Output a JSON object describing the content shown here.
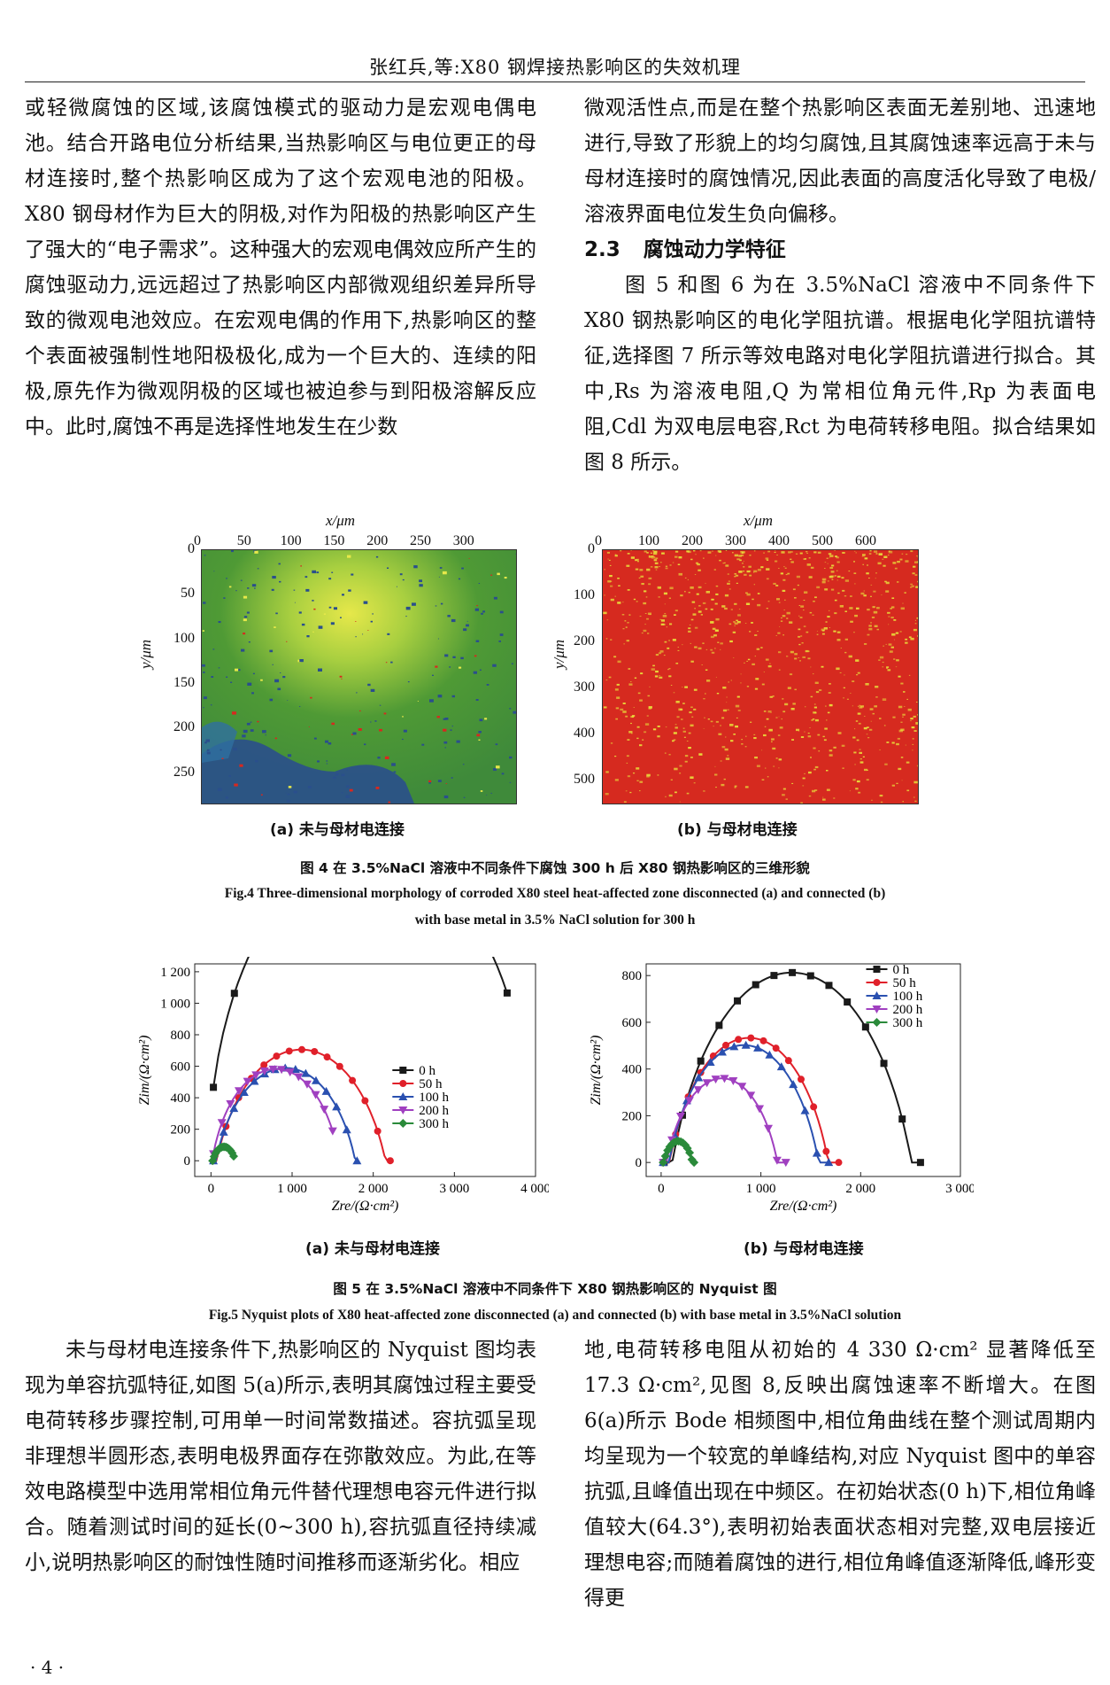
{
  "running_head": "张红兵,等:X80 钢焊接热影响区的失效机理",
  "left_column_top": [
    "或轻微腐蚀的区域,该腐蚀模式的驱动力是宏观电偶电池。结合开路电位分析结果,当热影响区与电位更正的母材连接时,整个热影响区成为了这个宏观电池的阳极。X80 钢母材作为巨大的阴极,对作为阳极的热影响区产生了强大的“电子需求”。这种强大的宏观电偶效应所产生的腐蚀驱动力,远远超过了热影响区内部微观组织差异所导致的微观电池效应。在宏观电偶的作用下,热影响区的整个表面被强制性地阳极极化,成为一个巨大的、连续的阳极,原先作为微观阴极的区域也被迫参与到阳极溶解反应中。此时,腐蚀不再是选择性地发生在少数"
  ],
  "right_column_top": {
    "para1": "微观活性点,而是在整个热影响区表面无差别地、迅速地进行,导致了形貌上的均匀腐蚀,且其腐蚀速率远高于未与母材连接时的腐蚀情况,因此表面的高度活化导致了电极/溶液界面电位发生负向偏移。",
    "section_number": "2.3",
    "section_title": "腐蚀动力学特征",
    "para2": "图 5 和图 6 为在 3.5%NaCl 溶液中不同条件下 X80 钢热影响区的电化学阻抗谱。根据电化学阻抗谱特征,选择图 7 所示等效电路对电化学阻抗谱进行拟合。其中,Rs 为溶液电阻,Q 为常相位角元件,Rp 为表面电阻,Cdl 为双电层电容,Rct 为电荷转移电阻。拟合结果如图 8 所示。"
  },
  "fig4": {
    "panel_a": {
      "x_label": "x/μm",
      "y_label": "y/μm",
      "x_ticks": [
        "0",
        "50",
        "100",
        "150",
        "200",
        "250",
        "300"
      ],
      "y_ticks": [
        "0",
        "50",
        "100",
        "150",
        "200",
        "250"
      ],
      "caption": "(a) 未与母材电连接",
      "colors": {
        "green": "#4f9a35",
        "yellow": "#e6e84a",
        "blue": "#2a4f8c",
        "red": "#d8281e"
      }
    },
    "panel_b": {
      "x_label": "x/μm",
      "y_label": "y/μm",
      "x_ticks": [
        "0",
        "100",
        "200",
        "300",
        "400",
        "500",
        "600"
      ],
      "y_ticks": [
        "0",
        "100",
        "200",
        "300",
        "400",
        "500"
      ],
      "caption": "(b) 与母材电连接",
      "colors": {
        "red": "#d62a1f",
        "yellow": "#e8d83a"
      }
    },
    "caption_cn": "图 4  在 3.5%NaCl 溶液中不同条件下腐蚀 300 h 后 X80 钢热影响区的三维形貌",
    "caption_en_1": "Fig.4  Three-dimensional morphology of corroded X80 steel heat-affected zone disconnected (a) and connected (b)",
    "caption_en_2": "with base metal in 3.5% NaCl solution for 300 h"
  },
  "fig5": {
    "caption_cn": "图 5  在 3.5%NaCl 溶液中不同条件下 X80 钢热影响区的 Nyquist 图",
    "caption_en": "Fig.5  Nyquist plots of X80 heat-affected zone disconnected (a) and connected (b) with base metal in 3.5%NaCl solution",
    "caption_a": "(a) 未与母材电连接",
    "caption_b": "(b) 与母材电连接"
  },
  "chart_data": [
    {
      "type": "scatter",
      "xlabel": "Zre/(Ω·cm²)",
      "ylabel": "Zim/(Ω·cm²)",
      "xlim": [
        -200,
        4000
      ],
      "ylim": [
        -100,
        1250
      ],
      "x_ticks": [
        0,
        1000,
        2000,
        3000,
        4000
      ],
      "x_tick_labels": [
        "0",
        "1 000",
        "2 000",
        "3 000",
        "4 000"
      ],
      "y_ticks": [
        0,
        200,
        400,
        600,
        800,
        1000,
        1200
      ],
      "y_tick_labels": [
        "0",
        "200",
        "400",
        "600",
        "800",
        "1 000",
        "1 200"
      ],
      "legend_position": "right",
      "series": [
        {
          "name": "0 h",
          "marker": "square",
          "color": "#1a1a1a",
          "center": 1970,
          "radius": 2000,
          "depression": -0.01,
          "x_start": 30,
          "x_end": 3650
        },
        {
          "name": "50 h",
          "marker": "circle",
          "color": "#e0202a",
          "center": 1110,
          "radius": 1120,
          "depression": -0.37,
          "x_start": 30,
          "x_end": 2210
        },
        {
          "name": "100 h",
          "marker": "triangle-up",
          "color": "#2a50b0",
          "center": 920,
          "radius": 920,
          "depression": -0.36,
          "x_start": 30,
          "x_end": 1800
        },
        {
          "name": "200 h",
          "marker": "triangle-down",
          "color": "#a040c0",
          "center": 800,
          "radius": 820,
          "depression": -0.29,
          "x_start": 30,
          "x_end": 1500
        },
        {
          "name": "300 h",
          "marker": "diamond",
          "color": "#2a8a3a",
          "center": 160,
          "radius": 150,
          "depression": -0.41,
          "x_start": 20,
          "x_end": 280
        }
      ]
    },
    {
      "type": "scatter",
      "xlabel": "Zre/(Ω·cm²)",
      "ylabel": "Zim/(Ω·cm²)",
      "xlim": [
        -150,
        3000
      ],
      "ylim": [
        -60,
        850
      ],
      "x_ticks": [
        0,
        1000,
        2000,
        3000
      ],
      "x_tick_labels": [
        "0",
        "1 000",
        "2 000",
        "3 000"
      ],
      "y_ticks": [
        0,
        200,
        400,
        600,
        800
      ],
      "y_tick_labels": [
        "0",
        "200",
        "400",
        "600",
        "800"
      ],
      "legend_position": "top-right",
      "series": [
        {
          "name": "0 h",
          "marker": "square",
          "color": "#1a1a1a",
          "center": 1310,
          "radius": 1290,
          "depression": -0.37,
          "x_start": 30,
          "x_end": 2600
        },
        {
          "name": "50 h",
          "marker": "circle",
          "color": "#e0202a",
          "center": 880,
          "radius": 860,
          "depression": -0.38,
          "x_start": 20,
          "x_end": 1780
        },
        {
          "name": "100 h",
          "marker": "triangle-up",
          "color": "#2a50b0",
          "center": 830,
          "radius": 810,
          "depression": -0.38,
          "x_start": 20,
          "x_end": 1680
        },
        {
          "name": "200 h",
          "marker": "triangle-down",
          "color": "#a040c0",
          "center": 610,
          "radius": 610,
          "depression": -0.41,
          "x_start": 20,
          "x_end": 1250
        },
        {
          "name": "300 h",
          "marker": "diamond",
          "color": "#2a8a3a",
          "center": 170,
          "radius": 160,
          "depression": -0.43,
          "x_start": 20,
          "x_end": 330
        }
      ]
    }
  ],
  "left_column_bottom": "未与母材电连接条件下,热影响区的 Nyquist 图均表现为单容抗弧特征,如图 5(a)所示,表明其腐蚀过程主要受电荷转移步骤控制,可用单一时间常数描述。容抗弧呈现非理想半圆形态,表明电极界面存在弥散效应。为此,在等效电路模型中选用常相位角元件替代理想电容元件进行拟合。随着测试时间的延长(0~300 h),容抗弧直径持续减小,说明热影响区的耐蚀性随时间推移而逐渐劣化。相应",
  "right_column_bottom": "地,电荷转移电阻从初始的 4 330 Ω·cm² 显著降低至 17.3 Ω·cm²,见图 8,反映出腐蚀速率不断增大。在图 6(a)所示 Bode 相频图中,相位角曲线在整个测试周期内均呈现为一个较宽的单峰结构,对应 Nyquist 图中的单容抗弧,且峰值出现在中频区。在初始状态(0 h)下,相位角峰值较大(64.3°),表明初始表面状态相对完整,双电层接近理想电容;而随着腐蚀的进行,相位角峰值逐渐降低,峰形变得更",
  "folio": "· 4 ·"
}
